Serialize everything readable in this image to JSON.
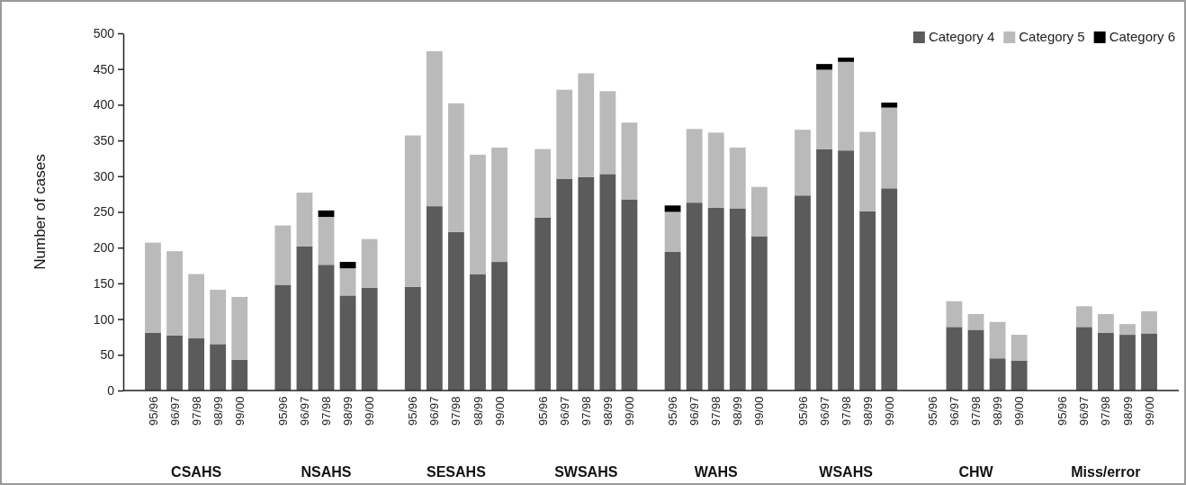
{
  "chart_data": {
    "type": "bar",
    "stacked": true,
    "ylabel": "Number of cases",
    "categories": [
      "95/96",
      "96/97",
      "97/98",
      "98/99",
      "99/00",
      null,
      "95/96",
      "96/97",
      "97/98",
      "98/99",
      "99/00",
      null,
      "95/96",
      "96/97",
      "97/98",
      "98/99",
      "99/00",
      null,
      "95/96",
      "96/97",
      "97/98",
      "98/99",
      "99/00",
      null,
      "95/96",
      "96/97",
      "97/98",
      "98/99",
      "99/00",
      null,
      "95/96",
      "96/97",
      "97/98",
      "98/99",
      "99/00",
      null,
      "95/96",
      "96/97",
      "97/98",
      "98/99",
      "99/00",
      null,
      "95/96",
      "96/97",
      "97/98",
      "98/99",
      "99/00"
    ],
    "series": [
      {
        "name": "Category 4",
        "color": "#5b5b5b",
        "values": [
          81,
          77,
          73,
          65,
          43,
          null,
          148,
          202,
          176,
          133,
          144,
          null,
          145,
          258,
          222,
          163,
          180,
          null,
          242,
          296,
          299,
          303,
          267,
          null,
          194,
          263,
          256,
          255,
          216,
          null,
          273,
          338,
          336,
          251,
          283,
          null,
          null,
          89,
          85,
          45,
          42,
          null,
          null,
          89,
          81,
          78,
          80
        ]
      },
      {
        "name": "Category 5",
        "color": "#bababa",
        "values": [
          126,
          118,
          90,
          76,
          88,
          null,
          83,
          75,
          67,
          38,
          68,
          null,
          212,
          217,
          180,
          167,
          160,
          null,
          96,
          125,
          145,
          116,
          108,
          null,
          56,
          103,
          105,
          85,
          69,
          null,
          92,
          111,
          124,
          111,
          113,
          null,
          null,
          36,
          22,
          51,
          36,
          null,
          null,
          29,
          26,
          15,
          31
        ]
      },
      {
        "name": "Category 6",
        "color": "#000000",
        "values": [
          null,
          null,
          null,
          null,
          null,
          null,
          null,
          null,
          9,
          9,
          null,
          null,
          null,
          null,
          null,
          null,
          null,
          null,
          null,
          null,
          null,
          null,
          null,
          null,
          9,
          null,
          null,
          null,
          null,
          null,
          null,
          8,
          6,
          null,
          7,
          null,
          null,
          null,
          null,
          null,
          null,
          null,
          null,
          null,
          null,
          null,
          null
        ]
      }
    ],
    "ylim": [
      0,
      500
    ],
    "yticks": [
      0,
      50,
      100,
      150,
      200,
      250,
      300,
      350,
      400,
      450,
      500
    ],
    "legend": "top right",
    "annotations": [
      "CSAHS",
      "NSAHS",
      "SESAHS",
      "SWSAHS",
      "WAHS",
      "WSAHS",
      "CHW",
      "Miss/error"
    ]
  }
}
